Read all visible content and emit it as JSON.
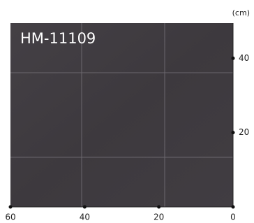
{
  "product": {
    "code": "HM-11109"
  },
  "scale": {
    "unit": "(cm)",
    "bottom_ticks": [
      60,
      40,
      20,
      0
    ],
    "right_ticks": [
      40,
      20
    ]
  }
}
